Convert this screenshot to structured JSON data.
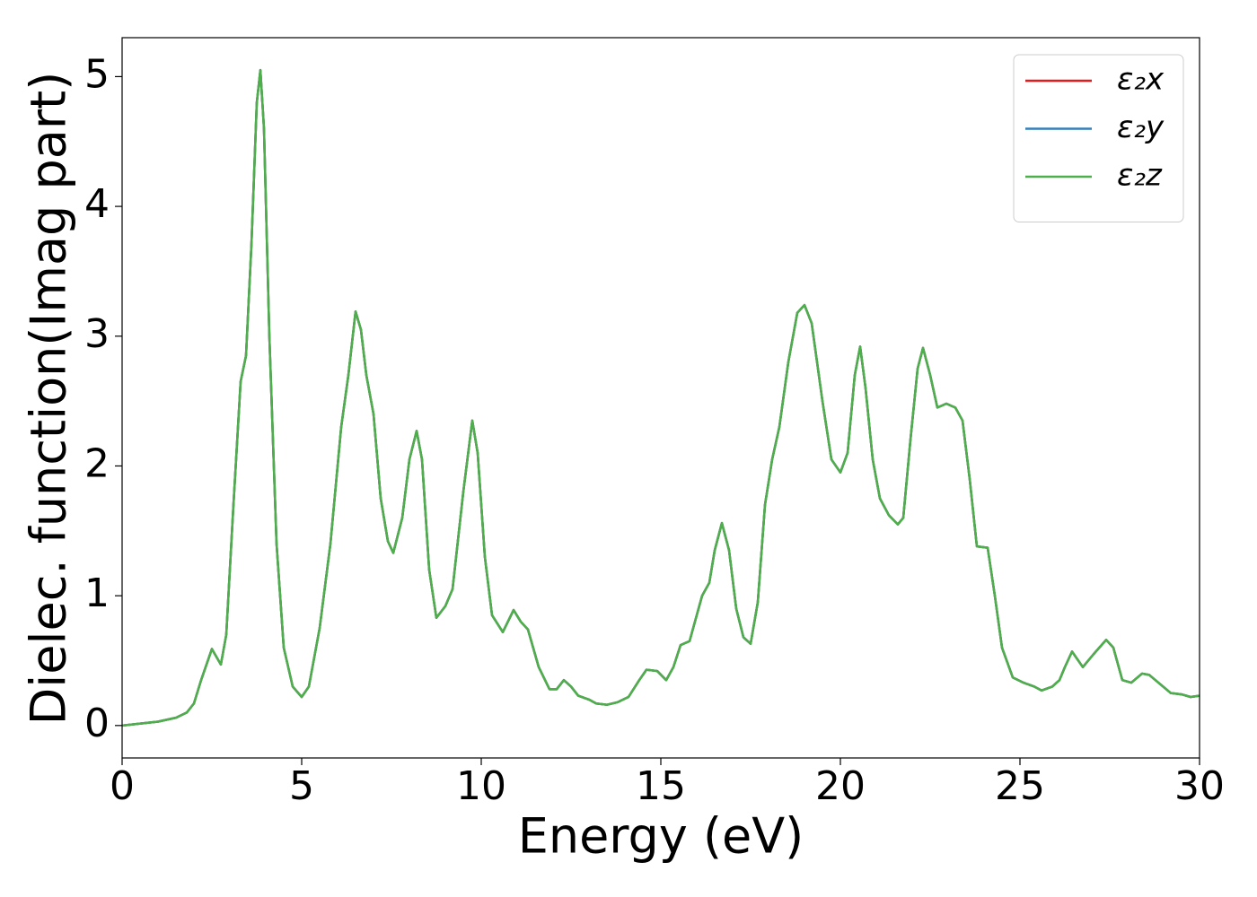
{
  "chart_data": {
    "type": "line",
    "xlabel": "Energy (eV)",
    "ylabel": "Dielec. function(Imag part)",
    "x": [
      0,
      1,
      1.5,
      1.8,
      2,
      2.2,
      2.5,
      2.75,
      2.9,
      3.1,
      3.3,
      3.45,
      3.6,
      3.75,
      3.85,
      3.95,
      4.1,
      4.3,
      4.5,
      4.75,
      5,
      5.2,
      5.5,
      5.8,
      6.1,
      6.3,
      6.5,
      6.65,
      6.8,
      7,
      7.2,
      7.4,
      7.55,
      7.8,
      8,
      8.2,
      8.35,
      8.55,
      8.75,
      9,
      9.2,
      9.5,
      9.75,
      9.9,
      10.1,
      10.3,
      10.6,
      10.9,
      11.1,
      11.3,
      11.6,
      11.9,
      12.1,
      12.3,
      12.5,
      12.7,
      13,
      13.2,
      13.5,
      13.8,
      14.1,
      14.4,
      14.6,
      14.9,
      15.15,
      15.35,
      15.55,
      15.8,
      16,
      16.15,
      16.35,
      16.5,
      16.7,
      16.9,
      17.1,
      17.3,
      17.5,
      17.7,
      17.9,
      18.1,
      18.3,
      18.55,
      18.8,
      19,
      19.2,
      19.5,
      19.75,
      20,
      20.2,
      20.4,
      20.55,
      20.7,
      20.9,
      21.1,
      21.35,
      21.6,
      21.75,
      21.95,
      22.15,
      22.3,
      22.5,
      22.7,
      22.95,
      23.2,
      23.4,
      23.6,
      23.8,
      24.1,
      24.3,
      24.5,
      24.8,
      25.1,
      25.4,
      25.6,
      25.9,
      26.1,
      26.25,
      26.45,
      26.75,
      27.05,
      27.4,
      27.6,
      27.85,
      28.1,
      28.4,
      28.6,
      28.9,
      29.2,
      29.5,
      29.75,
      30
    ],
    "series": [
      {
        "name": "ε₂x",
        "color": "#e41a1c",
        "values": [
          0,
          0.03,
          0.06,
          0.1,
          0.17,
          0.35,
          0.59,
          0.47,
          0.7,
          1.7,
          2.65,
          2.85,
          3.7,
          4.8,
          5.05,
          4.6,
          3.0,
          1.4,
          0.6,
          0.3,
          0.22,
          0.3,
          0.75,
          1.4,
          2.3,
          2.7,
          3.19,
          3.05,
          2.7,
          2.4,
          1.75,
          1.42,
          1.33,
          1.6,
          2.05,
          2.27,
          2.05,
          1.2,
          0.83,
          0.92,
          1.05,
          1.8,
          2.35,
          2.1,
          1.3,
          0.85,
          0.72,
          0.89,
          0.8,
          0.74,
          0.45,
          0.28,
          0.28,
          0.35,
          0.3,
          0.23,
          0.2,
          0.17,
          0.16,
          0.18,
          0.22,
          0.35,
          0.43,
          0.42,
          0.35,
          0.45,
          0.62,
          0.65,
          0.85,
          1.0,
          1.1,
          1.35,
          1.56,
          1.35,
          0.9,
          0.68,
          0.63,
          0.95,
          1.7,
          2.05,
          2.3,
          2.8,
          3.18,
          3.24,
          3.1,
          2.5,
          2.05,
          1.95,
          2.1,
          2.7,
          2.92,
          2.6,
          2.05,
          1.75,
          1.62,
          1.55,
          1.6,
          2.2,
          2.75,
          2.91,
          2.7,
          2.45,
          2.48,
          2.45,
          2.35,
          1.9,
          1.38,
          1.37,
          1.0,
          0.6,
          0.37,
          0.33,
          0.3,
          0.27,
          0.3,
          0.35,
          0.45,
          0.57,
          0.45,
          0.55,
          0.66,
          0.6,
          0.35,
          0.33,
          0.4,
          0.39,
          0.32,
          0.25,
          0.24,
          0.22,
          0.23
        ]
      },
      {
        "name": "ε₂y",
        "color": "#377eb8",
        "values": [
          0,
          0.03,
          0.06,
          0.1,
          0.17,
          0.35,
          0.59,
          0.47,
          0.7,
          1.7,
          2.65,
          2.85,
          3.7,
          4.8,
          5.05,
          4.6,
          3.0,
          1.4,
          0.6,
          0.3,
          0.22,
          0.3,
          0.75,
          1.4,
          2.3,
          2.7,
          3.19,
          3.05,
          2.7,
          2.4,
          1.75,
          1.42,
          1.33,
          1.6,
          2.05,
          2.27,
          2.05,
          1.2,
          0.83,
          0.92,
          1.05,
          1.8,
          2.35,
          2.1,
          1.3,
          0.85,
          0.72,
          0.89,
          0.8,
          0.74,
          0.45,
          0.28,
          0.28,
          0.35,
          0.3,
          0.23,
          0.2,
          0.17,
          0.16,
          0.18,
          0.22,
          0.35,
          0.43,
          0.42,
          0.35,
          0.45,
          0.62,
          0.65,
          0.85,
          1.0,
          1.1,
          1.35,
          1.56,
          1.35,
          0.9,
          0.68,
          0.63,
          0.95,
          1.7,
          2.05,
          2.3,
          2.8,
          3.18,
          3.24,
          3.1,
          2.5,
          2.05,
          1.95,
          2.1,
          2.7,
          2.92,
          2.6,
          2.05,
          1.75,
          1.62,
          1.55,
          1.6,
          2.2,
          2.75,
          2.91,
          2.7,
          2.45,
          2.48,
          2.45,
          2.35,
          1.9,
          1.38,
          1.37,
          1.0,
          0.6,
          0.37,
          0.33,
          0.3,
          0.27,
          0.3,
          0.35,
          0.45,
          0.57,
          0.45,
          0.55,
          0.66,
          0.6,
          0.35,
          0.33,
          0.4,
          0.39,
          0.32,
          0.25,
          0.24,
          0.22,
          0.23
        ]
      },
      {
        "name": "ε₂z",
        "color": "#4daf4a",
        "values": [
          0,
          0.03,
          0.06,
          0.1,
          0.17,
          0.35,
          0.59,
          0.47,
          0.7,
          1.7,
          2.65,
          2.85,
          3.7,
          4.8,
          5.05,
          4.6,
          3.0,
          1.4,
          0.6,
          0.3,
          0.22,
          0.3,
          0.75,
          1.4,
          2.3,
          2.7,
          3.19,
          3.05,
          2.7,
          2.4,
          1.75,
          1.42,
          1.33,
          1.6,
          2.05,
          2.27,
          2.05,
          1.2,
          0.83,
          0.92,
          1.05,
          1.8,
          2.35,
          2.1,
          1.3,
          0.85,
          0.72,
          0.89,
          0.8,
          0.74,
          0.45,
          0.28,
          0.28,
          0.35,
          0.3,
          0.23,
          0.2,
          0.17,
          0.16,
          0.18,
          0.22,
          0.35,
          0.43,
          0.42,
          0.35,
          0.45,
          0.62,
          0.65,
          0.85,
          1.0,
          1.1,
          1.35,
          1.56,
          1.35,
          0.9,
          0.68,
          0.63,
          0.95,
          1.7,
          2.05,
          2.3,
          2.8,
          3.18,
          3.24,
          3.1,
          2.5,
          2.05,
          1.95,
          2.1,
          2.7,
          2.92,
          2.6,
          2.05,
          1.75,
          1.62,
          1.55,
          1.6,
          2.2,
          2.75,
          2.91,
          2.7,
          2.45,
          2.48,
          2.45,
          2.35,
          1.9,
          1.38,
          1.37,
          1.0,
          0.6,
          0.37,
          0.33,
          0.3,
          0.27,
          0.3,
          0.35,
          0.45,
          0.57,
          0.45,
          0.55,
          0.66,
          0.6,
          0.35,
          0.33,
          0.4,
          0.39,
          0.32,
          0.25,
          0.24,
          0.22,
          0.23
        ]
      }
    ],
    "xlim": [
      0,
      30
    ],
    "xticks": [
      0,
      5,
      10,
      15,
      20,
      25,
      30
    ],
    "ylim": [
      -0.25,
      5.3
    ],
    "yticks": [
      0,
      1,
      2,
      3,
      4,
      5
    ],
    "grid": false,
    "legend": "upper right"
  }
}
